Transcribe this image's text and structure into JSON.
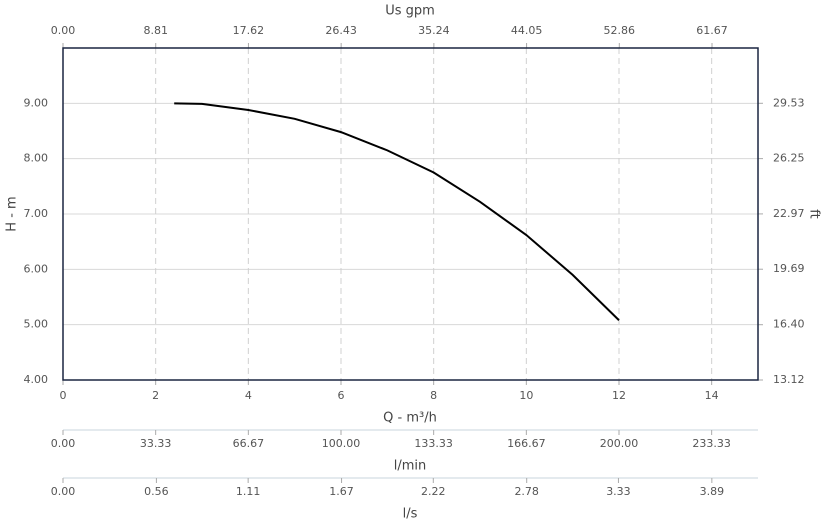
{
  "chart_data": {
    "type": "line",
    "x_label": "Q - m³/h",
    "y_label": "H - m",
    "y2_label": "ft",
    "x2_label": "Us gpm",
    "x": [
      2.4,
      3,
      4,
      5,
      6,
      7,
      8,
      9,
      10,
      11,
      12
    ],
    "series": [
      {
        "color": "#000000",
        "values": [
          9.0,
          8.99,
          8.88,
          8.72,
          8.48,
          8.15,
          7.75,
          7.22,
          6.62,
          5.9,
          5.08
        ]
      }
    ],
    "xlim": [
      0,
      15
    ],
    "xticks": [
      0,
      2,
      4,
      6,
      8,
      10,
      12,
      14
    ],
    "ylim": [
      4,
      10
    ],
    "yticks": [
      {
        "value": 4,
        "label": "4.00"
      },
      {
        "value": 5,
        "label": "5.00"
      },
      {
        "value": 6,
        "label": "6.00"
      },
      {
        "value": 7,
        "label": "7.00"
      },
      {
        "value": 8,
        "label": "8.00"
      },
      {
        "value": 9,
        "label": "9.00"
      }
    ],
    "y2lim": [
      13.12,
      32.81
    ],
    "y2ticks": [
      13.12,
      {
        "value": 16.4,
        "label": "16.40"
      },
      19.69,
      22.97,
      26.25,
      29.53
    ],
    "x2lim": [
      0,
      66.04
    ],
    "x2ticks": [
      {
        "value": 0,
        "label": "0.00"
      },
      8.81,
      17.62,
      26.43,
      35.24,
      44.05,
      52.86,
      61.67
    ],
    "extra_axes": [
      {
        "label": "l/min",
        "lim": [
          0,
          250
        ],
        "ticks": [
          {
            "value": 0,
            "label": "0.00"
          },
          33.33,
          66.67,
          {
            "value": 100,
            "label": "100.00"
          },
          133.33,
          166.67,
          {
            "value": 200,
            "label": "200.00"
          },
          233.33
        ]
      },
      {
        "label": "l/s",
        "lim": [
          0,
          4.1667
        ],
        "ticks": [
          {
            "value": 0,
            "label": "0.00"
          },
          0.56,
          1.11,
          1.67,
          2.22,
          2.78,
          3.33,
          3.89
        ]
      }
    ],
    "grid": true
  }
}
